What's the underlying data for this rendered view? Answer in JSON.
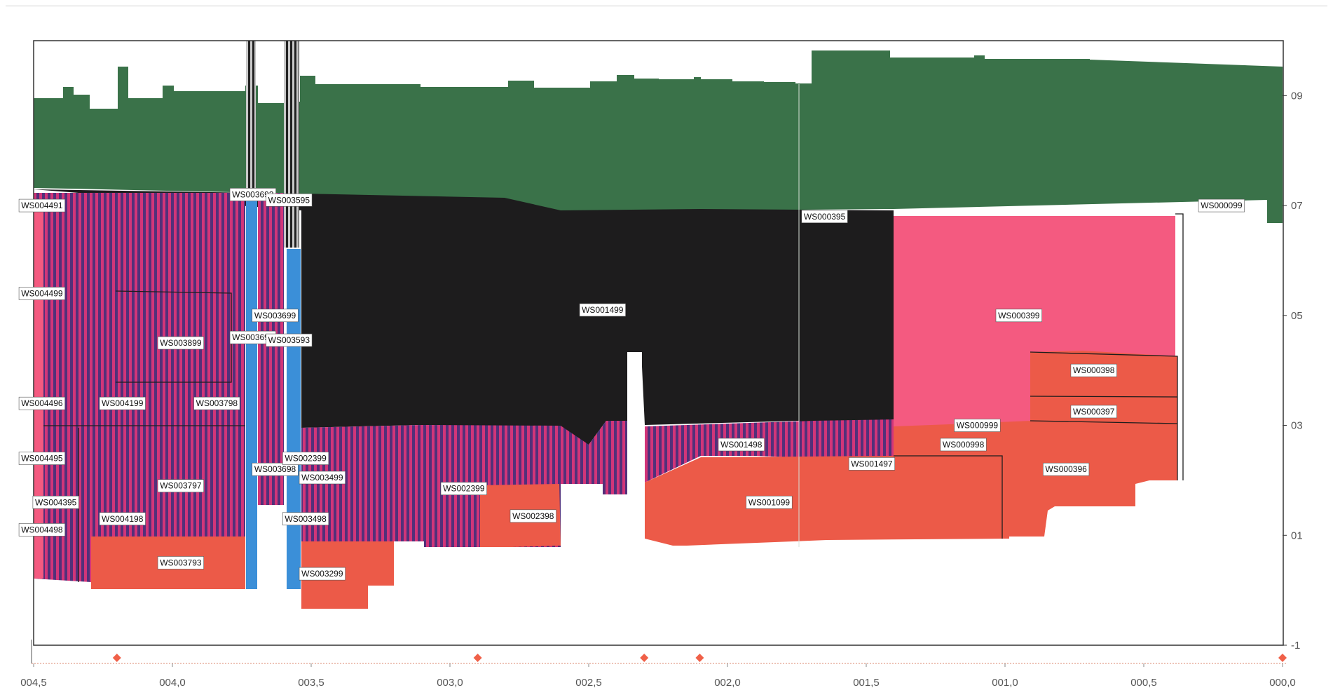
{
  "colors": {
    "green": "#3a7249",
    "black": "#1d1c1d",
    "pink": "#f45a80",
    "red": "#ec5a48",
    "blue": "#3b8fd8",
    "stripe_a": "#d23579",
    "stripe_b": "#52307a",
    "marker": "#f06048",
    "axis": "#333333"
  },
  "chart_data": {
    "type": "area",
    "title": "",
    "xlabel": "",
    "ylabel": "",
    "x_axis": {
      "min": 0.0,
      "max": 4.5,
      "reversed": true,
      "tick_values": [
        4.5,
        4.0,
        3.5,
        3.0,
        2.5,
        2.0,
        1.5,
        1.0,
        0.5,
        0.0
      ],
      "tick_labels": [
        "004,5",
        "004,0",
        "003,5",
        "003,0",
        "002,5",
        "002,0",
        "001,5",
        "001,0",
        "000,5",
        "000,0"
      ]
    },
    "y_axis": {
      "min": -1,
      "max": 10,
      "position": "right",
      "tick_values": [
        9,
        7,
        5,
        3,
        1,
        -1
      ],
      "tick_labels": [
        "09",
        "07",
        "05",
        "03",
        "01",
        "-1"
      ]
    },
    "grid": false,
    "legend": "none",
    "series": [
      {
        "name": "green",
        "color": "green",
        "top": [
          [
            4.5,
            8.9
          ],
          [
            4.4,
            9.0
          ],
          [
            4.2,
            8.75
          ],
          [
            4.1,
            9.1
          ],
          [
            3.95,
            9.15
          ],
          [
            3.7,
            9.15
          ],
          [
            3.65,
            8.85
          ],
          [
            3.55,
            8.85
          ],
          [
            3.5,
            9.2
          ],
          [
            3.3,
            9.15
          ],
          [
            3.0,
            9.15
          ],
          [
            2.8,
            9.2
          ],
          [
            2.6,
            9.15
          ],
          [
            2.5,
            9.25
          ],
          [
            2.3,
            9.35
          ],
          [
            2.0,
            9.2
          ],
          [
            1.8,
            9.2
          ],
          [
            1.7,
            9.75
          ],
          [
            1.4,
            9.7
          ],
          [
            1.0,
            9.6
          ],
          [
            0.5,
            9.6
          ],
          [
            0.0,
            9.5
          ]
        ],
        "bottom": [
          [
            4.5,
            7.25
          ],
          [
            3.5,
            7.2
          ],
          [
            2.6,
            7.0
          ],
          [
            1.4,
            6.85
          ],
          [
            0.4,
            7.0
          ],
          [
            0.0,
            6.6
          ]
        ]
      },
      {
        "name": "black",
        "color": "black",
        "top": [
          [
            4.5,
            7.25
          ],
          [
            3.5,
            7.2
          ],
          [
            2.6,
            7.0
          ],
          [
            1.4,
            6.85
          ]
        ],
        "bottom": [
          [
            3.5,
            2.9
          ],
          [
            3.25,
            3.0
          ],
          [
            2.6,
            2.55
          ],
          [
            2.55,
            3.1
          ],
          [
            2.4,
            3.1
          ],
          [
            2.35,
            4.3
          ],
          [
            2.3,
            2.9
          ],
          [
            1.7,
            3.1
          ],
          [
            1.4,
            3.0
          ]
        ]
      },
      {
        "name": "purple-stripes",
        "color": "stripe_a",
        "top": [
          [
            4.5,
            7.2
          ],
          [
            3.7,
            7.2
          ]
        ],
        "bottom": [
          [
            4.5,
            0.8
          ],
          [
            4.3,
            0.7
          ],
          [
            3.8,
            0.95
          ],
          [
            3.75,
            1.4
          ]
        ]
      },
      {
        "name": "pink",
        "color": "pink",
        "top": [
          [
            1.4,
            6.8
          ],
          [
            0.4,
            6.8
          ]
        ],
        "bottom": [
          [
            1.4,
            3.0
          ],
          [
            0.4,
            4.2
          ]
        ]
      },
      {
        "name": "red",
        "color": "red",
        "top": [
          [
            2.3,
            2.9
          ],
          [
            2.0,
            2.3
          ],
          [
            1.4,
            2.4
          ],
          [
            0.9,
            4.25
          ],
          [
            0.4,
            4.25
          ]
        ],
        "bottom": [
          [
            2.3,
            1.0
          ],
          [
            2.0,
            0.7
          ],
          [
            1.0,
            1.0
          ],
          [
            0.5,
            1.5
          ]
        ]
      }
    ],
    "gap": {
      "x_from": 2.35,
      "x_to": 2.3,
      "y_from": 0.9,
      "y_to": 4.3
    },
    "markers_x": [
      4.2,
      2.9,
      2.3,
      2.1,
      0.0
    ],
    "annotations": [
      {
        "text": "WS004491",
        "x": 4.47,
        "y": 7.0
      },
      {
        "text": "WS004499",
        "x": 4.47,
        "y": 5.4
      },
      {
        "text": "WS004496",
        "x": 4.47,
        "y": 3.4
      },
      {
        "text": "WS004495",
        "x": 4.47,
        "y": 2.4
      },
      {
        "text": "WS004395",
        "x": 4.42,
        "y": 1.6
      },
      {
        "text": "WS004498",
        "x": 4.47,
        "y": 1.1
      },
      {
        "text": "WS004199",
        "x": 4.18,
        "y": 3.4
      },
      {
        "text": "WS004198",
        "x": 4.18,
        "y": 1.3
      },
      {
        "text": "WS003899",
        "x": 3.97,
        "y": 4.5
      },
      {
        "text": "WS003798",
        "x": 3.84,
        "y": 3.4
      },
      {
        "text": "WS003797",
        "x": 3.97,
        "y": 1.9
      },
      {
        "text": "WS003793",
        "x": 3.97,
        "y": 0.5
      },
      {
        "text": "WS003693",
        "x": 3.71,
        "y": 7.2
      },
      {
        "text": "WS003595",
        "x": 3.58,
        "y": 7.1
      },
      {
        "text": "WS003699",
        "x": 3.63,
        "y": 5.0
      },
      {
        "text": "WS003692",
        "x": 3.71,
        "y": 4.6
      },
      {
        "text": "WS003593",
        "x": 3.58,
        "y": 4.55
      },
      {
        "text": "WS003698",
        "x": 3.63,
        "y": 2.2
      },
      {
        "text": "WS002399",
        "x": 3.52,
        "y": 2.4
      },
      {
        "text": "WS003499",
        "x": 3.46,
        "y": 2.05
      },
      {
        "text": "WS003498",
        "x": 3.52,
        "y": 1.3
      },
      {
        "text": "WS003299",
        "x": 3.46,
        "y": 0.3
      },
      {
        "text": "WS002399",
        "x": 2.95,
        "y": 1.85
      },
      {
        "text": "WS002398",
        "x": 2.7,
        "y": 1.35
      },
      {
        "text": "WS001499",
        "x": 2.45,
        "y": 5.1
      },
      {
        "text": "WS001498",
        "x": 1.95,
        "y": 2.65
      },
      {
        "text": "WS001497",
        "x": 1.48,
        "y": 2.3
      },
      {
        "text": "WS001099",
        "x": 1.85,
        "y": 1.6
      },
      {
        "text": "WS000395",
        "x": 1.65,
        "y": 6.8
      },
      {
        "text": "WS000399",
        "x": 0.95,
        "y": 5.0
      },
      {
        "text": "WS000398",
        "x": 0.68,
        "y": 4.0
      },
      {
        "text": "WS000397",
        "x": 0.68,
        "y": 3.25
      },
      {
        "text": "WS000396",
        "x": 0.78,
        "y": 2.2
      },
      {
        "text": "WS000999",
        "x": 1.1,
        "y": 3.0
      },
      {
        "text": "WS000998",
        "x": 1.15,
        "y": 2.65
      },
      {
        "text": "WS000099",
        "x": 0.22,
        "y": 7.0
      }
    ]
  }
}
